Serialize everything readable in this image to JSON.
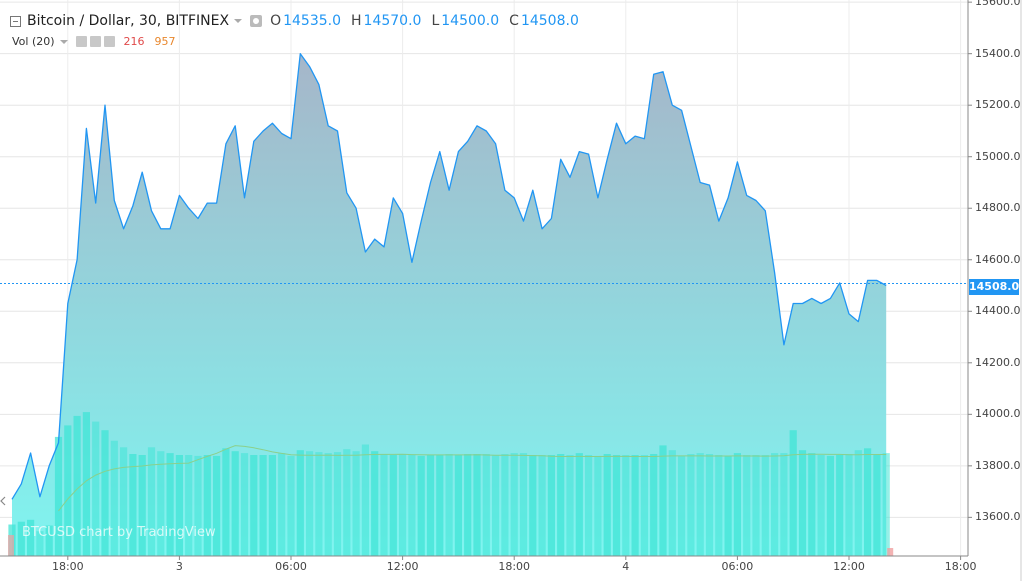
{
  "legend": {
    "symbol": "Bitcoin / Dollar, 30, BITFINEX",
    "open_label": "O",
    "open": "14535.0",
    "high_label": "H",
    "high": "14570.0",
    "low_label": "L",
    "low": "14500.0",
    "close_label": "C",
    "close": "14508.0"
  },
  "volume_legend": {
    "label": "Vol (20)",
    "value_down": "216",
    "value_up": "957"
  },
  "watermark": "BTCUSD chart by TradingView",
  "last_price_label": "14508.0",
  "colors": {
    "line": "#2196f3",
    "area_top": "#a6b6c9",
    "area_bottom": "#7ff5f0",
    "volume": "#40e4d6",
    "volume_ma": "#8bd08b",
    "last_price": "#2196f3"
  },
  "chart_data": {
    "type": "area",
    "y_ticks": [
      "13600.0",
      "13800.0",
      "14000.0",
      "14200.0",
      "14400.0",
      "14600.0",
      "14800.0",
      "15000.0",
      "15200.0",
      "15400.0",
      "15600.0"
    ],
    "x_ticks": [
      "18:00",
      "3",
      "06:00",
      "12:00",
      "18:00",
      "4",
      "06:00",
      "12:00",
      "18:00"
    ],
    "ylim": [
      13450,
      15620
    ],
    "last_price": 14508,
    "price": [
      13670,
      13730,
      13850,
      13680,
      13800,
      13890,
      14430,
      14600,
      15110,
      14820,
      15200,
      14830,
      14720,
      14810,
      14940,
      14790,
      14720,
      14720,
      14850,
      14800,
      14760,
      14820,
      14820,
      15050,
      15120,
      14840,
      15060,
      15100,
      15130,
      15090,
      15070,
      15400,
      15350,
      15280,
      15120,
      15100,
      14860,
      14800,
      14630,
      14680,
      14650,
      14840,
      14780,
      14590,
      14750,
      14900,
      15020,
      14870,
      15020,
      15060,
      15120,
      15100,
      15050,
      14870,
      14840,
      14750,
      14870,
      14720,
      14760,
      14990,
      14920,
      15020,
      15010,
      14840,
      14990,
      15130,
      15050,
      15080,
      15070,
      15320,
      15330,
      15200,
      15180,
      15040,
      14900,
      14890,
      14750,
      14840,
      14980,
      14850,
      14830,
      14790,
      14550,
      14270,
      14430,
      14430,
      14450,
      14430,
      14450,
      14510,
      14390,
      14360,
      14520,
      14520,
      14500
    ],
    "volume": [
      330,
      360,
      380,
      260,
      320,
      1250,
      1370,
      1470,
      1510,
      1410,
      1320,
      1210,
      1140,
      1070,
      1060,
      1140,
      1100,
      1080,
      1060,
      1060,
      1050,
      1060,
      1050,
      1130,
      1100,
      1080,
      1060,
      1060,
      1060,
      1080,
      1050,
      1110,
      1100,
      1090,
      1080,
      1090,
      1120,
      1100,
      1170,
      1100,
      1070,
      1060,
      1070,
      1060,
      1050,
      1060,
      1060,
      1070,
      1060,
      1070,
      1070,
      1070,
      1060,
      1070,
      1080,
      1080,
      1060,
      1060,
      1060,
      1070,
      1060,
      1080,
      1060,
      1050,
      1070,
      1060,
      1060,
      1060,
      1060,
      1070,
      1160,
      1110,
      1050,
      1070,
      1080,
      1070,
      1060,
      1050,
      1080,
      1060,
      1060,
      1060,
      1080,
      1080,
      1320,
      1110,
      1080,
      1060,
      1050,
      1060,
      1070,
      1110,
      1130,
      1060,
      1080
    ]
  }
}
